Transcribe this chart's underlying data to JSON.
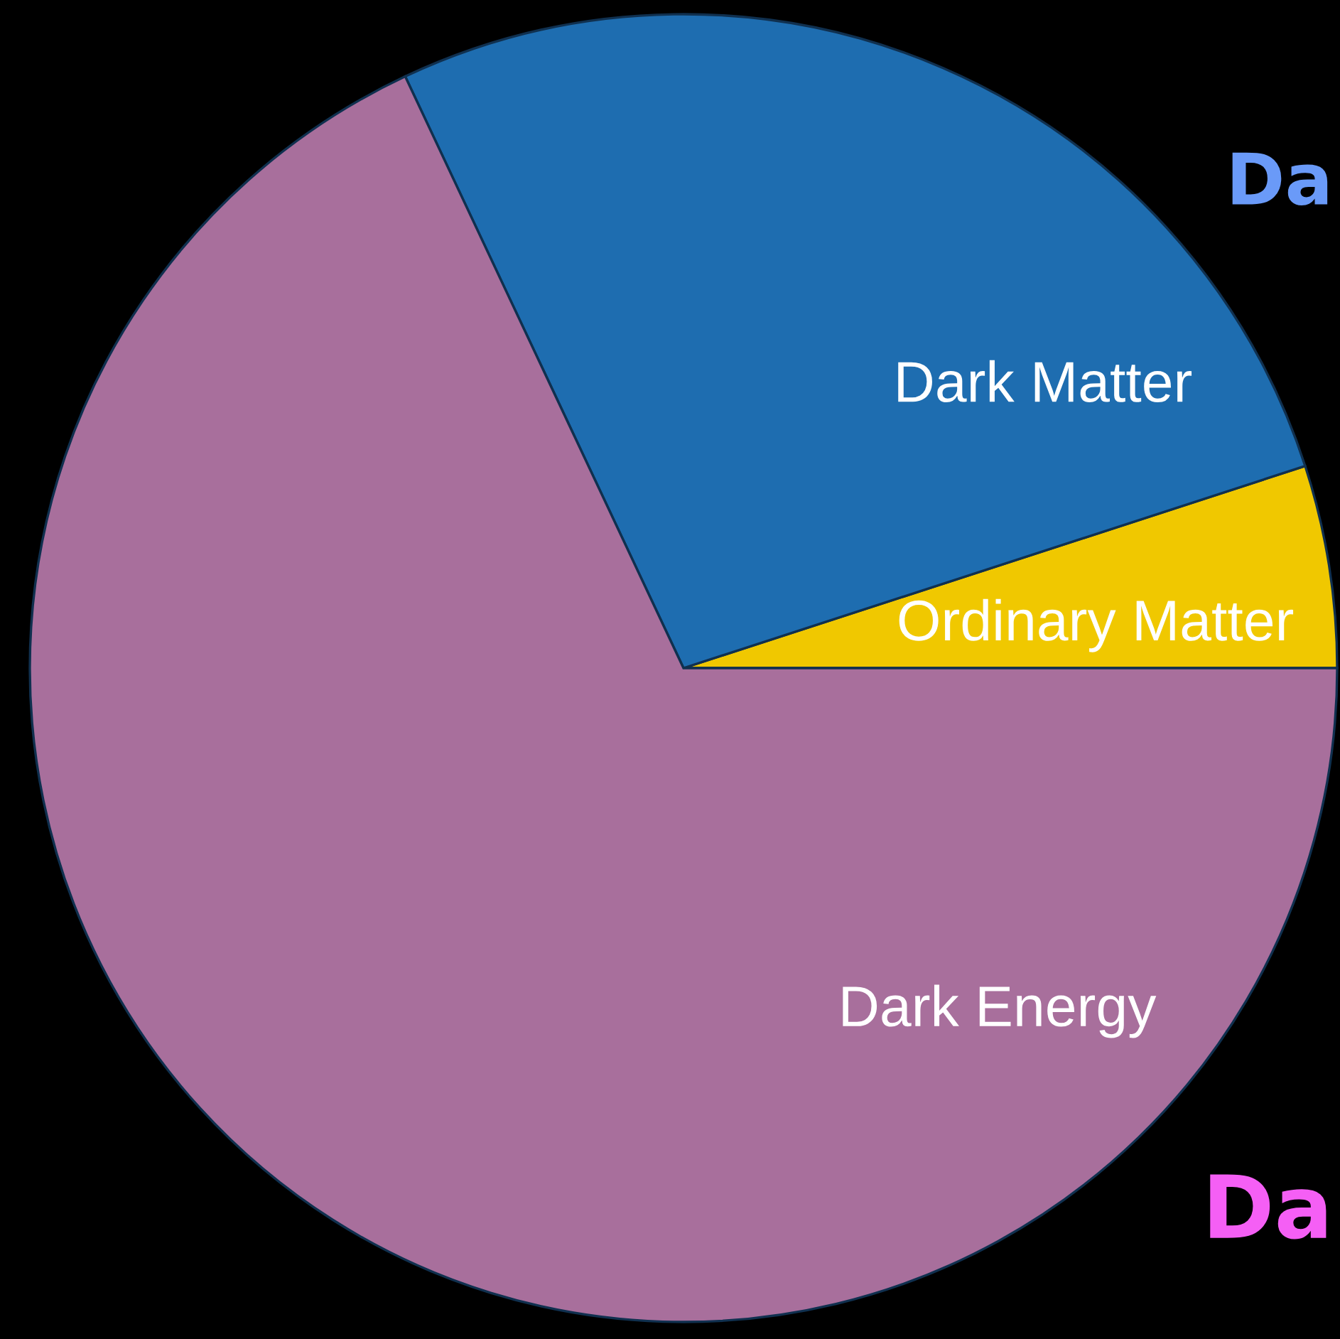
{
  "chart_data": {
    "type": "pie",
    "categories": [
      "Ordinary Matter",
      "Dark Matter",
      "Dark Energy"
    ],
    "values": [
      5,
      27,
      68
    ],
    "colors": [
      "#f0c800",
      "#1e6db0",
      "#a86f9c"
    ],
    "data_labels": false,
    "annotations": [
      "Da",
      "Da"
    ]
  }
}
